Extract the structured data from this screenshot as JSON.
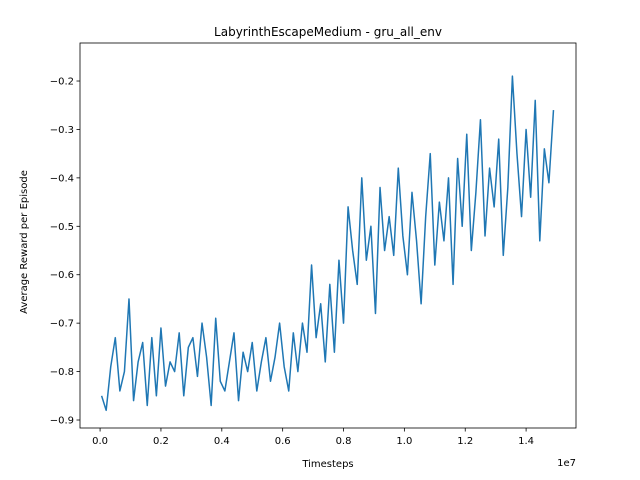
{
  "chart_data": {
    "type": "line",
    "title": "LabyrinthEscapeMedium - gru_all_env",
    "x_label": "Timesteps",
    "y_label": "Average Reward per Episode",
    "x_offset_label": "1e7",
    "xlim": [
      -660000,
      15640000
    ],
    "ylim": [
      -0.9165,
      -0.1215
    ],
    "xticks": [
      {
        "value": 0,
        "label": "0.0"
      },
      {
        "value": 2000000,
        "label": "0.2"
      },
      {
        "value": 4000000,
        "label": "0.4"
      },
      {
        "value": 6000000,
        "label": "0.6"
      },
      {
        "value": 8000000,
        "label": "0.8"
      },
      {
        "value": 10000000,
        "label": "1.0"
      },
      {
        "value": 12000000,
        "label": "1.2"
      },
      {
        "value": 14000000,
        "label": "1.4"
      }
    ],
    "yticks": [
      {
        "value": -0.9,
        "label": "−0.9"
      },
      {
        "value": -0.8,
        "label": "−0.8"
      },
      {
        "value": -0.7,
        "label": "−0.7"
      },
      {
        "value": -0.6,
        "label": "−0.6"
      },
      {
        "value": -0.5,
        "label": "−0.5"
      },
      {
        "value": -0.4,
        "label": "−0.4"
      },
      {
        "value": -0.3,
        "label": "−0.3"
      },
      {
        "value": -0.2,
        "label": "−0.2"
      }
    ],
    "x": [
      50000,
      200000,
      350000,
      500000,
      650000,
      800000,
      950000,
      1100000,
      1250000,
      1400000,
      1550000,
      1700000,
      1850000,
      2000000,
      2150000,
      2300000,
      2450000,
      2600000,
      2750000,
      2900000,
      3050000,
      3200000,
      3350000,
      3500000,
      3650000,
      3800000,
      3950000,
      4100000,
      4250000,
      4400000,
      4550000,
      4700000,
      4850000,
      5000000,
      5150000,
      5300000,
      5450000,
      5600000,
      5750000,
      5900000,
      6050000,
      6200000,
      6350000,
      6500000,
      6650000,
      6800000,
      6950000,
      7100000,
      7250000,
      7400000,
      7550000,
      7700000,
      7850000,
      8000000,
      8150000,
      8300000,
      8450000,
      8600000,
      8750000,
      8900000,
      9050000,
      9200000,
      9350000,
      9500000,
      9650000,
      9800000,
      9950000,
      10100000,
      10250000,
      10400000,
      10550000,
      10700000,
      10850000,
      11000000,
      11150000,
      11300000,
      11450000,
      11600000,
      11750000,
      11900000,
      12050000,
      12200000,
      12350000,
      12500000,
      12650000,
      12800000,
      12950000,
      13100000,
      13250000,
      13400000,
      13550000,
      13700000,
      13850000,
      14000000,
      14150000,
      14300000,
      14450000,
      14600000,
      14750000,
      14900000
    ],
    "series": [
      {
        "name": "gru_all_env",
        "color": "#1f77b4",
        "values": [
          -0.85,
          -0.88,
          -0.79,
          -0.73,
          -0.84,
          -0.8,
          -0.65,
          -0.86,
          -0.78,
          -0.74,
          -0.87,
          -0.73,
          -0.85,
          -0.71,
          -0.83,
          -0.78,
          -0.8,
          -0.72,
          -0.85,
          -0.75,
          -0.73,
          -0.81,
          -0.7,
          -0.77,
          -0.87,
          -0.69,
          -0.82,
          -0.84,
          -0.78,
          -0.72,
          -0.86,
          -0.76,
          -0.8,
          -0.74,
          -0.84,
          -0.78,
          -0.73,
          -0.82,
          -0.77,
          -0.7,
          -0.79,
          -0.84,
          -0.72,
          -0.8,
          -0.7,
          -0.76,
          -0.58,
          -0.73,
          -0.66,
          -0.78,
          -0.62,
          -0.76,
          -0.57,
          -0.7,
          -0.46,
          -0.55,
          -0.62,
          -0.4,
          -0.57,
          -0.5,
          -0.68,
          -0.42,
          -0.55,
          -0.48,
          -0.56,
          -0.38,
          -0.52,
          -0.6,
          -0.43,
          -0.53,
          -0.66,
          -0.48,
          -0.35,
          -0.58,
          -0.45,
          -0.53,
          -0.4,
          -0.62,
          -0.36,
          -0.5,
          -0.31,
          -0.55,
          -0.43,
          -0.28,
          -0.52,
          -0.38,
          -0.46,
          -0.32,
          -0.56,
          -0.42,
          -0.19,
          -0.35,
          -0.48,
          -0.3,
          -0.44,
          -0.24,
          -0.53,
          -0.34,
          -0.41,
          -0.26
        ]
      }
    ]
  }
}
